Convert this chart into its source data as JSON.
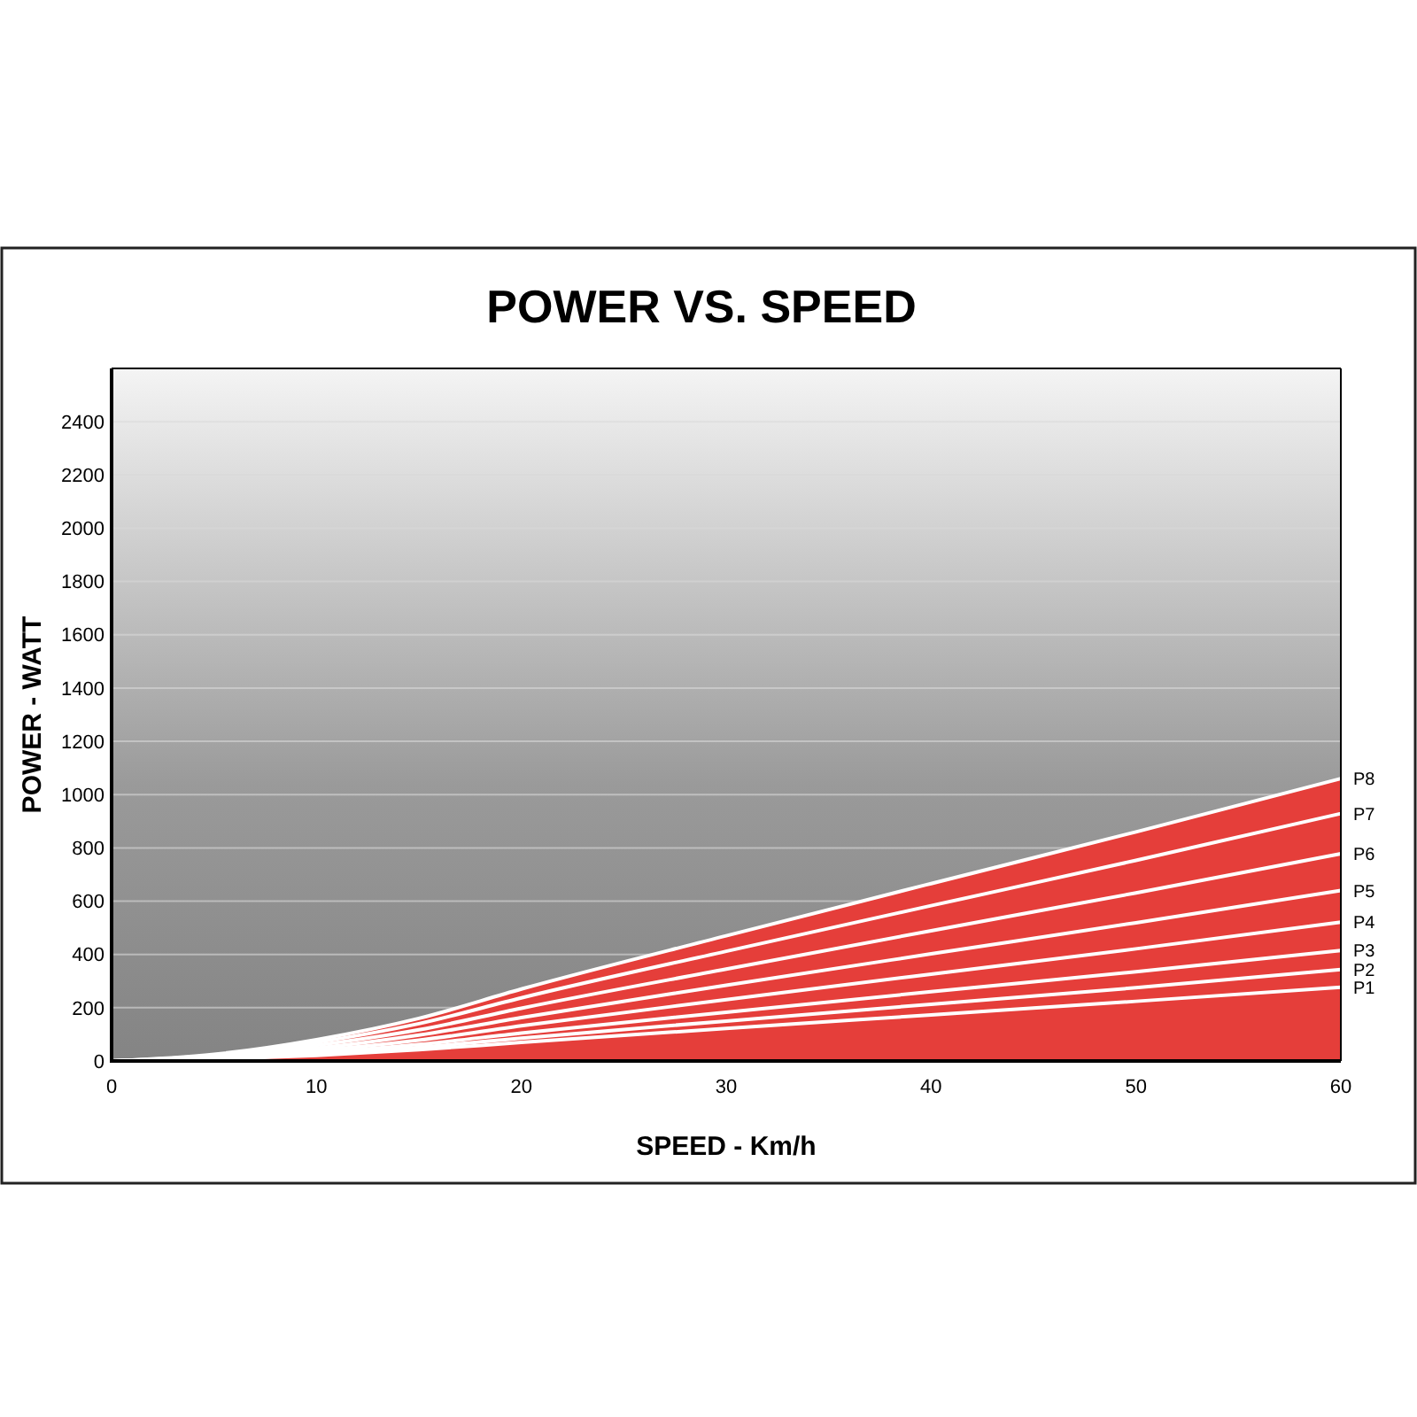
{
  "chart_data": {
    "type": "line",
    "title": "POWER VS. SPEED",
    "xlabel": "SPEED - Km/h",
    "ylabel": "POWER - WATT",
    "x": [
      0,
      5,
      10,
      15,
      20,
      30,
      40,
      50,
      60
    ],
    "xlim": [
      0,
      60
    ],
    "xticks": [
      0,
      10,
      20,
      30,
      40,
      50,
      60
    ],
    "ylim": [
      0,
      2600
    ],
    "yticks": [
      0,
      200,
      400,
      600,
      800,
      1000,
      1200,
      1400,
      1600,
      1800,
      2000,
      2200,
      2400
    ],
    "grid": "y",
    "marker": "none",
    "line_style": "solid",
    "series": [
      {
        "name": "P8",
        "type": "area",
        "color": "#e53e3a",
        "values": [
          0,
          25,
          80,
          160,
          270,
          470,
          666,
          860,
          1060
        ]
      },
      {
        "name": "P7",
        "color": "#ffffff",
        "values": [
          0,
          22,
          70,
          140,
          237,
          412,
          583,
          753,
          929
        ]
      },
      {
        "name": "P6",
        "color": "#ffffff",
        "values": [
          0,
          18,
          59,
          117,
          198,
          345,
          489,
          631,
          778
        ]
      },
      {
        "name": "P5",
        "color": "#ffffff",
        "values": [
          0,
          15,
          48,
          97,
          163,
          284,
          402,
          519,
          640
        ]
      },
      {
        "name": "P4",
        "color": "#ffffff",
        "values": [
          0,
          12,
          39,
          78,
          132,
          230,
          326,
          421,
          521
        ]
      },
      {
        "name": "P3",
        "color": "#ffffff",
        "values": [
          0,
          10,
          31,
          62,
          105,
          183,
          260,
          335,
          415
        ]
      },
      {
        "name": "P2",
        "color": "#ffffff",
        "values": [
          0,
          8,
          26,
          51,
          86,
          150,
          213,
          275,
          343
        ]
      },
      {
        "name": "P1",
        "color": "#ffffff",
        "values": [
          0,
          7,
          21,
          42,
          70,
          122,
          173,
          224,
          277
        ]
      }
    ]
  }
}
